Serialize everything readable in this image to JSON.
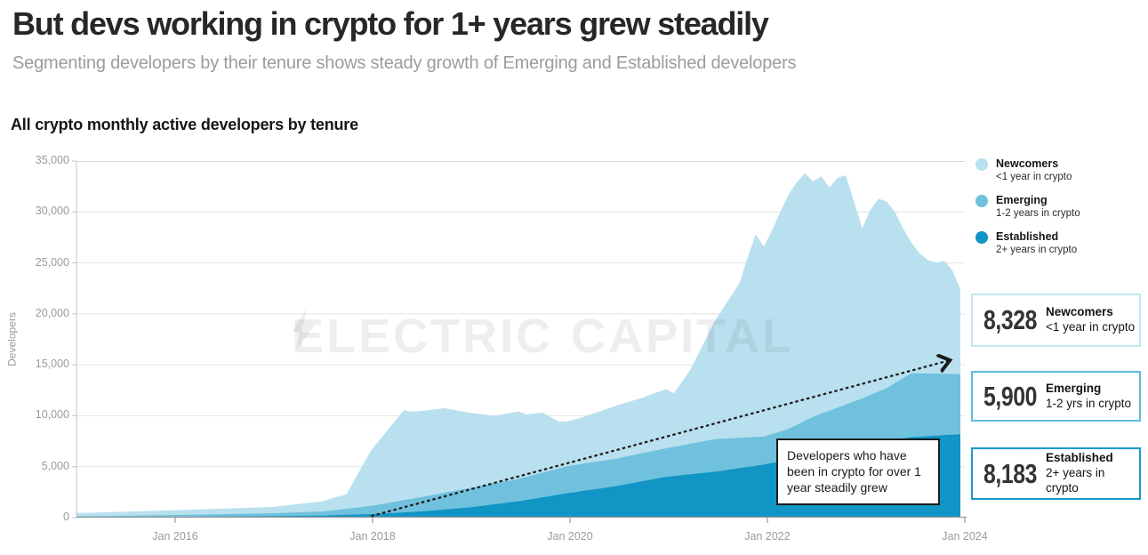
{
  "header": {
    "title": "But devs working in crypto for 1+ years grew steadily",
    "subtitle": "Segmenting developers by their tenure shows steady growth of Emerging and Established developers"
  },
  "watermark": {
    "left": "ELECTRIC",
    "right": "CAPITAL",
    "icon": "lightning-bolt"
  },
  "annotation": {
    "text": "Developers who have\nbeen in crypto for over 1\nyear steadily grew"
  },
  "legend": {
    "items": [
      {
        "name": "Newcomers",
        "desc": "<1 year in crypto",
        "color": "#b9e0ef"
      },
      {
        "name": "Emerging",
        "desc": "1-2 years in crypto",
        "color": "#6fc1dd"
      },
      {
        "name": "Established",
        "desc": "2+ years in crypto",
        "color": "#1095c5"
      }
    ]
  },
  "stat_boxes": [
    {
      "value": "8,328",
      "name": "Newcomers",
      "desc": "<1 year in crypto",
      "border_color": "#c5e6f2"
    },
    {
      "value": "5,900",
      "name": "Emerging",
      "desc": "1-2 yrs in crypto",
      "border_color": "#5fbedd"
    },
    {
      "value": "8,183",
      "name": "Established",
      "desc": "2+ years in crypto",
      "border_color": "#1899c9"
    }
  ],
  "chart_data": {
    "type": "area",
    "stacked": true,
    "title": "All crypto monthly active developers by tenure",
    "ylabel": "Developers",
    "ylim": [
      0,
      35000
    ],
    "grid": "horizontal",
    "legend_position": "top-right",
    "x_start": "2015-01",
    "x_end": "2024-01",
    "x_interval": "monthly",
    "yticks": [
      {
        "value": 0,
        "label": "0"
      },
      {
        "value": 5000,
        "label": "5,000"
      },
      {
        "value": 10000,
        "label": "10,000"
      },
      {
        "value": 15000,
        "label": "15,000"
      },
      {
        "value": 20000,
        "label": "20,000"
      },
      {
        "value": 25000,
        "label": "25,000"
      },
      {
        "value": 30000,
        "label": "30,000"
      },
      {
        "value": 35000,
        "label": "35,000"
      }
    ],
    "xticks": [
      {
        "month_index": 12,
        "label": "Jan 2016"
      },
      {
        "month_index": 36,
        "label": "Jan 2018"
      },
      {
        "month_index": 60,
        "label": "Jan 2020"
      },
      {
        "month_index": 84,
        "label": "Jan 2022"
      },
      {
        "month_index": 108,
        "label": "Jan 2024"
      }
    ],
    "series": [
      {
        "name": "Established",
        "tenure": "2+ years in crypto",
        "color": "#1095c5",
        "values": [
          30,
          33,
          37,
          40,
          43,
          47,
          50,
          55,
          60,
          65,
          70,
          75,
          80,
          85,
          90,
          95,
          100,
          105,
          110,
          117,
          123,
          130,
          137,
          143,
          150,
          158,
          167,
          175,
          183,
          192,
          200,
          225,
          250,
          275,
          300,
          325,
          350,
          392,
          433,
          475,
          517,
          558,
          600,
          667,
          733,
          800,
          867,
          933,
          1000,
          1100,
          1200,
          1300,
          1400,
          1500,
          1600,
          1733,
          1867,
          2000,
          2133,
          2267,
          2400,
          2517,
          2633,
          2750,
          2867,
          2983,
          3100,
          3250,
          3400,
          3550,
          3700,
          3850,
          4000,
          4083,
          4167,
          4250,
          4333,
          4417,
          4500,
          4617,
          4733,
          4850,
          4967,
          5083,
          5200,
          5367,
          5533,
          5700,
          5867,
          6033,
          6200,
          6350,
          6500,
          6650,
          6800,
          6950,
          7100,
          7233,
          7367,
          7500,
          7633,
          7767,
          7900,
          7947,
          7994,
          8041,
          8088,
          8136,
          8183
        ]
      },
      {
        "name": "Emerging",
        "tenure": "1-2 years in crypto",
        "color": "#6fc1dd",
        "values": [
          100,
          107,
          113,
          120,
          127,
          133,
          140,
          147,
          153,
          160,
          167,
          173,
          180,
          188,
          197,
          205,
          213,
          222,
          230,
          238,
          247,
          255,
          263,
          272,
          280,
          300,
          320,
          340,
          360,
          380,
          400,
          467,
          533,
          600,
          667,
          733,
          800,
          900,
          1000,
          1100,
          1200,
          1300,
          1400,
          1483,
          1567,
          1650,
          1733,
          1817,
          1900,
          1950,
          2000,
          2050,
          2100,
          2150,
          2200,
          2275,
          2350,
          2425,
          2500,
          2575,
          2650,
          2658,
          2667,
          2675,
          2683,
          2692,
          2700,
          2717,
          2733,
          2750,
          2767,
          2783,
          2800,
          2867,
          2933,
          3000,
          3067,
          3133,
          3200,
          3128,
          3057,
          2985,
          2913,
          2842,
          2770,
          2847,
          2923,
          3000,
          3233,
          3467,
          3700,
          3850,
          4000,
          4150,
          4300,
          4450,
          4600,
          4800,
          5000,
          5200,
          5557,
          5913,
          6270,
          6208,
          6147,
          6085,
          6023,
          5962,
          5900
        ]
      },
      {
        "name": "Newcomers",
        "tenure": "<1 year in crypto",
        "color": "#b9e0ef",
        "values": [
          320,
          335,
          342,
          358,
          365,
          385,
          395,
          410,
          418,
          435,
          442,
          460,
          470,
          480,
          498,
          505,
          522,
          530,
          548,
          555,
          572,
          580,
          598,
          605,
          620,
          685,
          745,
          812,
          875,
          935,
          1000,
          1140,
          1285,
          1425,
          2760,
          4110,
          5450,
          6290,
          7140,
          7980,
          8825,
          8540,
          8450,
          8400,
          8340,
          8283,
          8000,
          7700,
          7400,
          7150,
          6900,
          6650,
          6620,
          6610,
          6600,
          6120,
          5995,
          5875,
          5200,
          4558,
          4400,
          4500,
          4600,
          4750,
          4900,
          5050,
          5200,
          5280,
          5355,
          5433,
          5560,
          5680,
          5800,
          5250,
          6250,
          7250,
          8700,
          10150,
          11600,
          12790,
          13975,
          15165,
          17620,
          19875,
          18630,
          20000,
          21544,
          23000,
          23800,
          24300,
          23100,
          23300,
          21900,
          22550,
          22500,
          19600,
          16700,
          18170,
          18933,
          18300,
          16810,
          14700,
          12830,
          11800,
          11159,
          10900,
          11089,
          10202,
          8328
        ]
      }
    ],
    "latest_values": {
      "Newcomers": 8328,
      "Emerging": 5900,
      "Established": 8183
    },
    "trend_line": {
      "style": "dashed",
      "arrow": true,
      "color": "#1a1a1a",
      "start": {
        "month_index": 36,
        "value": 150
      },
      "end": {
        "month_index": 106.5,
        "value": 15400
      }
    }
  }
}
